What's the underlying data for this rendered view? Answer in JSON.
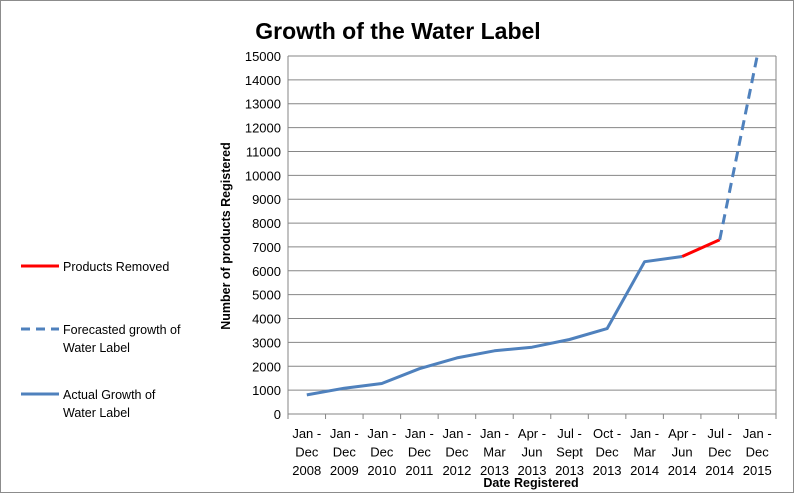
{
  "chart_data": {
    "type": "line",
    "title": "Growth of the Water Label",
    "xlabel": "Date Registered",
    "ylabel": "Number of products Registered",
    "ylim": [
      0,
      15000
    ],
    "yticks": [
      "0",
      "1000",
      "2000",
      "3000",
      "4000",
      "5000",
      "6000",
      "7000",
      "8000",
      "9000",
      "10000",
      "11000",
      "12000",
      "13000",
      "14000",
      "15000"
    ],
    "grid": true,
    "legend_position": "left",
    "categories": [
      [
        "Jan -",
        "Dec",
        "2008"
      ],
      [
        "Jan -",
        "Dec",
        "2009"
      ],
      [
        "Jan -",
        "Dec",
        "2010"
      ],
      [
        "Jan -",
        "Dec",
        "2011"
      ],
      [
        "Jan -",
        "Dec",
        "2012"
      ],
      [
        "Jan -",
        "Mar",
        "2013"
      ],
      [
        "Apr -",
        "Jun",
        "2013"
      ],
      [
        "Jul -",
        "Sept",
        "2013"
      ],
      [
        "Oct -",
        "Dec",
        "2013"
      ],
      [
        "Jan -",
        "Mar",
        "2014"
      ],
      [
        "Apr -",
        "Jun",
        "2014"
      ],
      [
        "Jul -",
        "Dec",
        "2014"
      ],
      [
        "Jan -",
        "Dec",
        "2015"
      ]
    ],
    "series": [
      {
        "name": "Actual Growth of Water Label",
        "color": "#4f81bd",
        "style": "solid",
        "values": [
          800,
          1080,
          1280,
          1900,
          2350,
          2650,
          2800,
          3120,
          3580,
          6380,
          6600,
          null,
          null
        ]
      },
      {
        "name": "Products Removed",
        "color": "#ff0000",
        "style": "solid",
        "values": [
          null,
          null,
          null,
          null,
          null,
          null,
          null,
          null,
          null,
          null,
          6600,
          7300,
          null
        ]
      },
      {
        "name": "Forecasted growth of Water Label",
        "color": "#4f81bd",
        "style": "dashed",
        "values": [
          null,
          null,
          null,
          null,
          null,
          null,
          null,
          null,
          null,
          null,
          null,
          7300,
          15000
        ]
      }
    ],
    "legend": [
      {
        "lines": [
          "Products Removed"
        ],
        "color": "#ff0000",
        "style": "solid"
      },
      {
        "lines": [
          "Forecasted growth of",
          "Water Label"
        ],
        "color": "#4f81bd",
        "style": "dashed"
      },
      {
        "lines": [
          "Actual Growth of",
          "Water Label"
        ],
        "color": "#4f81bd",
        "style": "solid"
      }
    ]
  }
}
